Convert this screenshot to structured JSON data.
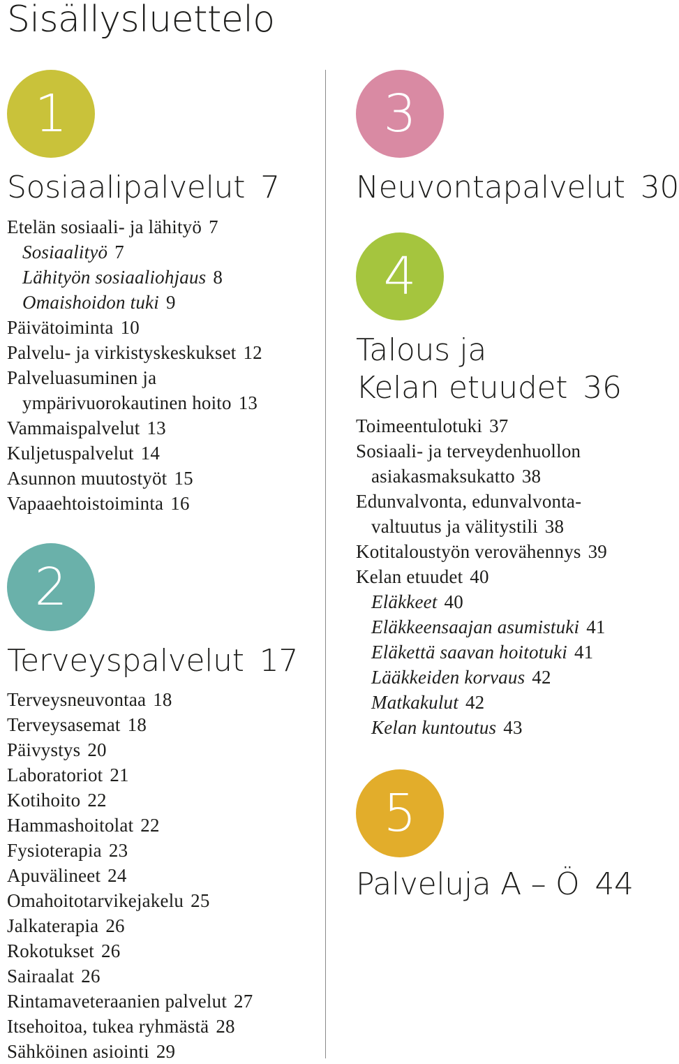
{
  "title": "Sisällysluettelo",
  "colors": {
    "section1": "#c9c23a",
    "section2": "#6ab1aa",
    "section3": "#d98aa3",
    "section4": "#a5c53e",
    "section5": "#e2ad2b"
  },
  "sections": [
    {
      "number": "1",
      "heading": "Sosiaalipalvelut",
      "page": "7",
      "entries": [
        {
          "label": "Etelän sosiaali- ja lähityö",
          "page": "7"
        },
        {
          "label": "Sosiaalityö",
          "page": "7"
        },
        {
          "label": "Lähityön sosiaaliohjaus",
          "page": "8"
        },
        {
          "label": "Omaishoidon tuki",
          "page": "9"
        },
        {
          "label": "Päivätoiminta",
          "page": "10"
        },
        {
          "label": "Palvelu- ja virkistyskeskukset",
          "page": "12"
        },
        {
          "label": "Palveluasuminen ja",
          "page": ""
        },
        {
          "label": "ympärivuorokautinen hoito",
          "page": "13"
        },
        {
          "label": "Vammaispalvelut",
          "page": "13"
        },
        {
          "label": "Kuljetuspalvelut",
          "page": "14"
        },
        {
          "label": "Asunnon muutostyöt",
          "page": "15"
        },
        {
          "label": "Vapaaehtoistoiminta",
          "page": "16"
        }
      ]
    },
    {
      "number": "2",
      "heading": "Terveyspalvelut",
      "page": "17",
      "entries": [
        {
          "label": "Terveysneuvontaa",
          "page": "18"
        },
        {
          "label": "Terveysasemat",
          "page": "18"
        },
        {
          "label": "Päivystys",
          "page": "20"
        },
        {
          "label": "Laboratoriot",
          "page": "21"
        },
        {
          "label": "Kotihoito",
          "page": "22"
        },
        {
          "label": "Hammashoitolat",
          "page": "22"
        },
        {
          "label": "Fysioterapia",
          "page": "23"
        },
        {
          "label": "Apuvälineet",
          "page": "24"
        },
        {
          "label": "Omahoitotarvikejakelu",
          "page": "25"
        },
        {
          "label": "Jalkaterapia",
          "page": "26"
        },
        {
          "label": "Rokotukset",
          "page": "26"
        },
        {
          "label": "Sairaalat",
          "page": "26"
        },
        {
          "label": "Rintamaveteraanien palvelut",
          "page": "27"
        },
        {
          "label": "Itsehoitoa, tukea ryhmästä",
          "page": "28"
        },
        {
          "label": "Sähköinen asiointi",
          "page": "29"
        }
      ]
    },
    {
      "number": "3",
      "heading": "Neuvontapalvelut",
      "page": "30",
      "entries": []
    },
    {
      "number": "4",
      "heading_line1": "Talous ja",
      "heading_line2": "Kelan etuudet",
      "page": "36",
      "entries": [
        {
          "label": "Toimeentulotuki",
          "page": "37"
        },
        {
          "label": "Sosiaali- ja terveydenhuollon",
          "page": ""
        },
        {
          "label": "asiakasmaksukatto",
          "page": "38"
        },
        {
          "label": "Edunvalvonta, edunvalvonta-",
          "page": ""
        },
        {
          "label": "valtuutus ja välitystili",
          "page": "38"
        },
        {
          "label": "Kotitaloustyön verovähennys",
          "page": "39"
        },
        {
          "label": "Kelan etuudet",
          "page": "40"
        },
        {
          "label": "Eläkkeet",
          "page": "40"
        },
        {
          "label": "Eläkkeensaajan asumistuki",
          "page": "41"
        },
        {
          "label": "Eläkettä saavan hoitotuki",
          "page": "41"
        },
        {
          "label": "Lääkkeiden korvaus",
          "page": "42"
        },
        {
          "label": "Matkakulut",
          "page": "42"
        },
        {
          "label": "Kelan kuntoutus",
          "page": "43"
        }
      ]
    },
    {
      "number": "5",
      "heading": "Palveluja A – Ö",
      "page": "44",
      "entries": []
    }
  ]
}
